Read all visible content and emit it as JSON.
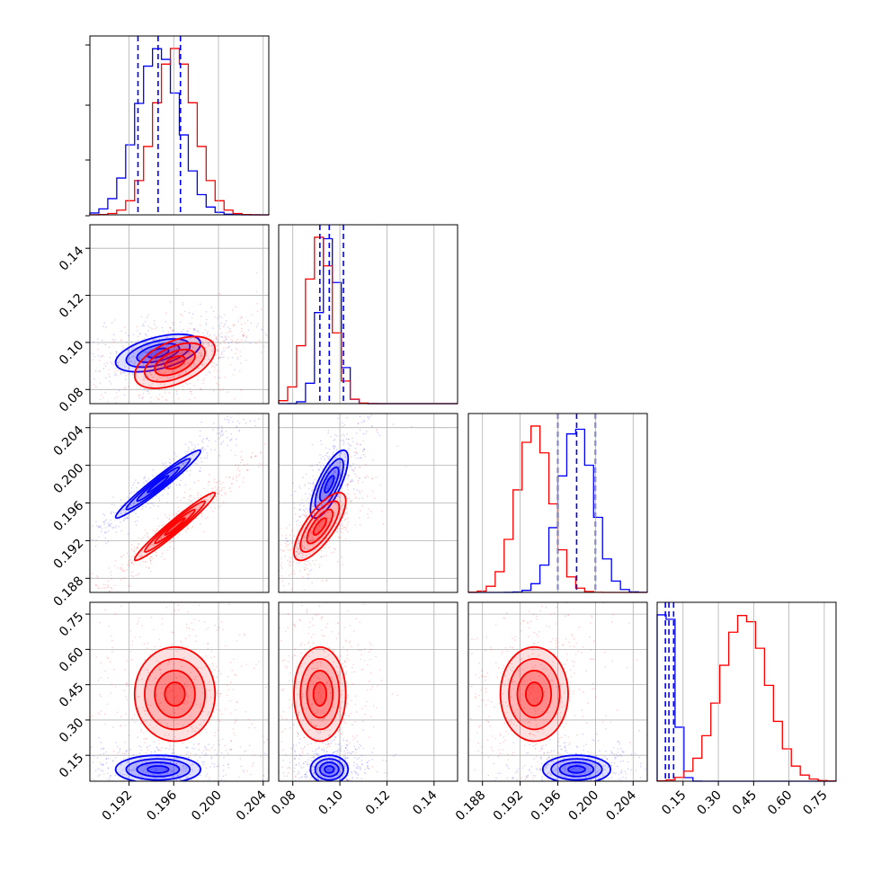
{
  "chart_data": {
    "type": "corner",
    "title": "",
    "series": [
      {
        "color": "#0000ff"
      },
      {
        "color": "#ff0000"
      }
    ],
    "parameters": [
      {
        "range": [
          0.1885,
          0.2045
        ],
        "ticks": [
          0.192,
          0.196,
          0.2,
          0.204
        ],
        "tick_labels": [
          "0.192",
          "0.196",
          "0.200",
          "0.204"
        ],
        "blue": {
          "median": 0.1946,
          "q16": 0.1928,
          "q84": 0.1966,
          "sigma": 0.0019,
          "corr": 0.75
        },
        "red": {
          "median": 0.1961,
          "sigma": 0.0018
        }
      },
      {
        "range": [
          0.074,
          0.15
        ],
        "ticks": [
          0.08,
          0.1,
          0.12,
          0.14
        ],
        "tick_labels": [
          "0.08",
          "0.10",
          "0.12",
          "0.14"
        ],
        "blue": {
          "median": 0.0955,
          "q16": 0.0915,
          "q84": 0.1015,
          "sigma": 0.004
        },
        "red": {
          "median": 0.0915,
          "sigma": 0.0055
        }
      },
      {
        "range": [
          0.1865,
          0.2055
        ],
        "ticks": [
          0.188,
          0.192,
          0.196,
          0.2,
          0.204
        ],
        "tick_labels": [
          "0.188",
          "0.192",
          "0.196",
          "0.200",
          "0.204"
        ],
        "blue": {
          "median": 0.198,
          "q16": 0.196,
          "q84": 0.2,
          "sigma": 0.0018
        },
        "red": {
          "median": 0.1935,
          "sigma": 0.0018
        }
      },
      {
        "range": [
          0.04,
          0.8
        ],
        "ticks": [
          0.15,
          0.3,
          0.45,
          0.6,
          0.75
        ],
        "tick_labels": [
          "0.15",
          "0.30",
          "0.45",
          "0.60",
          "0.75"
        ],
        "blue": {
          "median": 0.09,
          "q16": 0.075,
          "q84": 0.11,
          "sigma": 0.03
        },
        "red": {
          "median": 0.41,
          "sigma": 0.1
        }
      }
    ],
    "correlations": [
      {
        "pair": [
          1,
          0
        ],
        "blue": 0.5,
        "red": 0.5
      },
      {
        "pair": [
          2,
          0
        ],
        "blue": 0.97,
        "red": 0.97
      },
      {
        "pair": [
          2,
          1
        ],
        "blue": 0.75,
        "red": 0.75
      },
      {
        "pair": [
          3,
          0
        ],
        "blue": 0.0,
        "red": 0.0
      },
      {
        "pair": [
          3,
          1
        ],
        "blue": 0.0,
        "red": 0.0
      },
      {
        "pair": [
          3,
          2
        ],
        "blue": 0.0,
        "red": 0.0
      }
    ],
    "grid": true,
    "contour_levels": [
      0.5,
      1.0,
      1.5,
      2.0
    ],
    "quantile_lines": "dashed",
    "legend": "none"
  }
}
